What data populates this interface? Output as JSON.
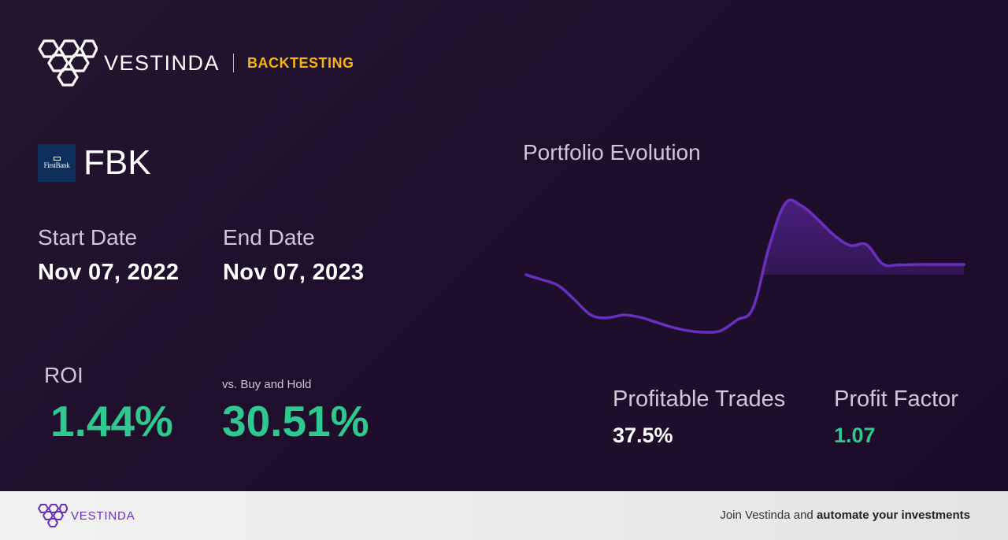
{
  "header": {
    "brand_name": "VESTINDA",
    "section_tag": "BACKTESTING"
  },
  "ticker": {
    "logo_text": "FirstBank",
    "symbol": "FBK"
  },
  "dates": {
    "start_label": "Start Date",
    "start_value": "Nov 07, 2022",
    "end_label": "End Date",
    "end_value": "Nov 07, 2023"
  },
  "roi": {
    "label": "ROI",
    "value": "1.44%",
    "vs_label": "vs. Buy and Hold",
    "vs_value": "30.51%"
  },
  "chart": {
    "title": "Portfolio Evolution"
  },
  "chart_data": {
    "type": "line",
    "title": "Portfolio Evolution",
    "xlabel": "",
    "ylabel": "",
    "grid": false,
    "legend": "none",
    "baseline": 0,
    "x": [
      0,
      1,
      2,
      3,
      4,
      5,
      6,
      7,
      8,
      9,
      10,
      11,
      12,
      13,
      14,
      15,
      16,
      17,
      18,
      19,
      20,
      21,
      22,
      23,
      24,
      25,
      26,
      27
    ],
    "values": [
      0,
      -0.7,
      -1.5,
      -3.5,
      -5.6,
      -6.0,
      -5.6,
      -5.9,
      -6.6,
      -7.3,
      -7.8,
      -8.0,
      -7.8,
      -6.3,
      -4.6,
      4.0,
      10.0,
      9.6,
      7.7,
      5.5,
      4.1,
      4.2,
      1.5,
      1.4,
      1.44,
      1.44,
      1.44,
      1.44
    ],
    "colors": {
      "line": "#6b2fc0",
      "fill_top": "#6b2fc0"
    }
  },
  "stats": {
    "profitable_label": "Profitable Trades",
    "profitable_value": "37.5%",
    "factor_label": "Profit Factor",
    "factor_value": "1.07"
  },
  "footer": {
    "brand_name": "VESTINDA",
    "cta_prefix": "Join Vestinda and ",
    "cta_bold": "automate your investments"
  },
  "colors": {
    "accent_yellow": "#f5b50e",
    "positive_green": "#2ec98f",
    "brand_purple": "#6a2fb6"
  }
}
